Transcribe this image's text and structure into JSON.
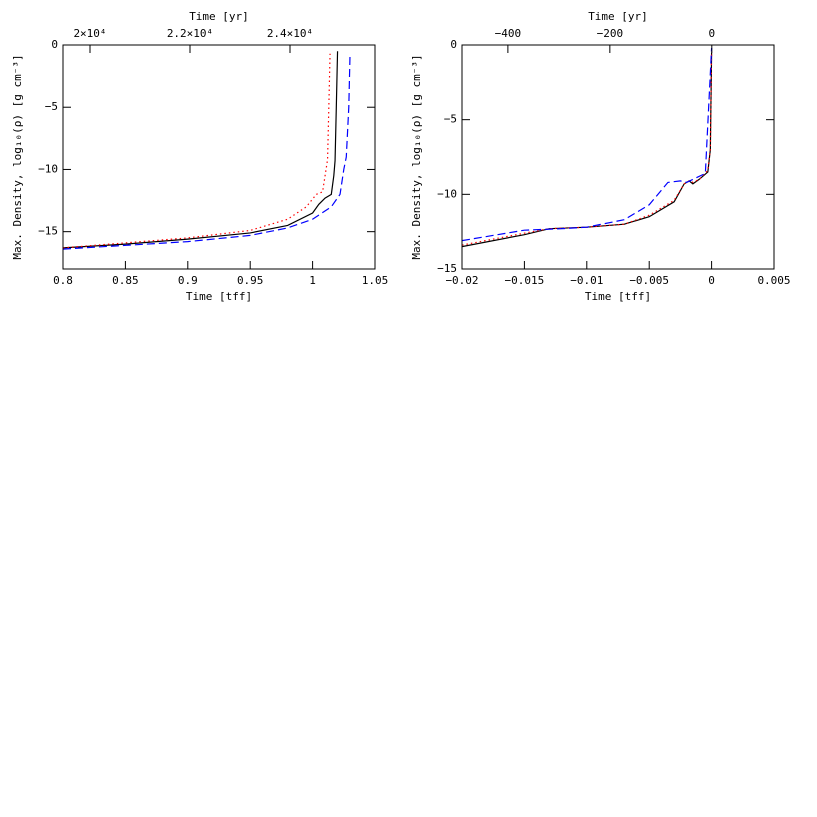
{
  "chart_data": [
    {
      "type": "line",
      "x_label": "Time [tff]",
      "y_label": "Max. Density, log₁₀(ρ) [g cm⁻³]",
      "x2_label": "Time [yr]",
      "xlim": [
        0.8,
        1.05
      ],
      "xticks": [
        0.8,
        0.85,
        0.9,
        0.95,
        1,
        1.05
      ],
      "ylim": [
        -18,
        0
      ],
      "yticks": [
        0,
        {
          "value": -5,
          "label": "−5"
        },
        {
          "value": -10,
          "label": "−10"
        },
        {
          "value": -15,
          "label": "−15"
        }
      ],
      "x2lim": [
        19460,
        25700
      ],
      "x2ticks": [
        {
          "value": 20000,
          "label": "2×10⁴"
        },
        {
          "value": 22000,
          "label": "2.2×10⁴"
        },
        {
          "value": 24000,
          "label": "2.4×10⁴"
        }
      ],
      "series": [
        {
          "color": "#000000",
          "dash": "solid",
          "x": [
            0.8,
            0.85,
            0.9,
            0.95,
            0.98,
            1.0,
            1.005,
            1.01,
            1.015,
            1.017,
            1.018,
            1.019,
            1.02
          ],
          "values": [
            -16.3,
            -16.0,
            -15.6,
            -15.1,
            -14.5,
            -13.5,
            -12.8,
            -12.3,
            -12.0,
            -10.5,
            -9.3,
            -5,
            -0.5
          ]
        },
        {
          "color": "#ff0000",
          "dash": "dotted",
          "x": [
            0.8,
            0.9,
            0.95,
            0.98,
            0.995,
            1.003,
            1.008,
            1.01,
            1.012,
            1.013,
            1.014
          ],
          "values": [
            -16.3,
            -15.5,
            -14.9,
            -14.0,
            -13.0,
            -12.0,
            -11.8,
            -10.5,
            -9.2,
            -5,
            -0.7
          ]
        },
        {
          "color": "#0000ff",
          "dash": "dashed",
          "x": [
            0.8,
            0.9,
            0.95,
            0.98,
            1.0,
            1.015,
            1.022,
            1.025,
            1.027,
            1.029,
            1.03
          ],
          "values": [
            -16.4,
            -15.8,
            -15.3,
            -14.7,
            -14.0,
            -13.0,
            -12.0,
            -10.0,
            -9.0,
            -5,
            -0.7
          ]
        }
      ]
    },
    {
      "type": "line",
      "x_label": "Time [tff]",
      "y_label": "Max. Density, log₁₀(ρ) [g cm⁻³]",
      "x2_label": "Time [yr]",
      "xlim": [
        -0.02,
        0.005
      ],
      "xticks": [
        {
          "value": -0.02,
          "label": "−0.02"
        },
        {
          "value": -0.015,
          "label": "−0.015"
        },
        {
          "value": -0.01,
          "label": "−0.01"
        },
        {
          "value": -0.005,
          "label": "−0.005"
        },
        0,
        0.005
      ],
      "ylim": [
        -15,
        0
      ],
      "yticks": [
        0,
        {
          "value": -5,
          "label": "−5"
        },
        {
          "value": -10,
          "label": "−10"
        },
        {
          "value": -15,
          "label": "−15"
        }
      ],
      "x2lim": [
        -490,
        122
      ],
      "x2ticks": [
        {
          "value": -400,
          "label": "−400"
        },
        {
          "value": -200,
          "label": "−200"
        },
        0
      ],
      "series": [
        {
          "color": "#000000",
          "dash": "solid",
          "x": [
            -0.02,
            -0.015,
            -0.013,
            -0.01,
            -0.007,
            -0.005,
            -0.003,
            -0.0022,
            -0.0018,
            -0.0015,
            -0.001,
            -0.0003,
            -0.0001,
            0
          ],
          "values": [
            -13.5,
            -12.7,
            -12.3,
            -12.2,
            -12.0,
            -11.5,
            -10.5,
            -9.3,
            -9.1,
            -9.3,
            -9.0,
            -8.5,
            -7,
            -0.5
          ]
        },
        {
          "color": "#ff0000",
          "dash": "dotted",
          "x": [
            -0.02,
            -0.015,
            -0.013,
            -0.01,
            -0.007,
            -0.005,
            -0.003,
            -0.0022,
            -0.0018,
            -0.0015,
            -0.001,
            -0.0003,
            -0.0001,
            0
          ],
          "values": [
            -13.4,
            -12.6,
            -12.3,
            -12.2,
            -12.0,
            -11.4,
            -10.4,
            -9.3,
            -9.1,
            -9.2,
            -9.0,
            -8.4,
            -7,
            -0.4
          ]
        },
        {
          "color": "#0000ff",
          "dash": "dashed",
          "x": [
            -0.02,
            -0.015,
            -0.012,
            -0.01,
            -0.007,
            -0.005,
            -0.0035,
            -0.0025,
            -0.002,
            -0.0015,
            -0.0005,
            0
          ],
          "values": [
            -13.1,
            -12.4,
            -12.3,
            -12.2,
            -11.7,
            -10.7,
            -9.2,
            -9.1,
            -9.2,
            -9.0,
            -8.6,
            -0.2
          ]
        }
      ]
    }
  ]
}
